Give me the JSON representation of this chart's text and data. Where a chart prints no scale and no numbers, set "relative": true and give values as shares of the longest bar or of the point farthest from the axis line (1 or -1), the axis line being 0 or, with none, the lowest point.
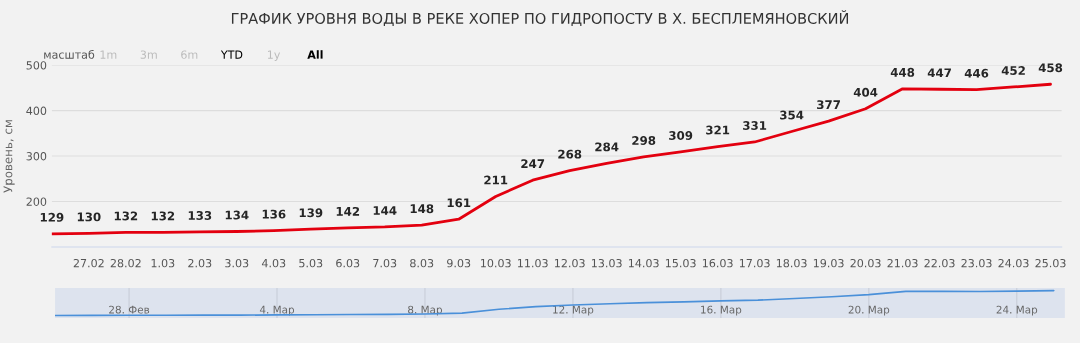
{
  "chart_data": [
    {
      "type": "line",
      "title": "ГРАФИК УРОВНЯ ВОДЫ В РЕКЕ ХОПЕР ПО ГИДРОПОСТУ В Х. БЕСПЛЕМЯНОВСКИЙ",
      "ylabel": "Уровень, см",
      "annotations": [
        "масштаб",
        "1m",
        "3m",
        "6m",
        "YTD",
        "1y",
        "All"
      ],
      "categories": [
        null,
        "27.02",
        "28.02",
        "1.03",
        "2.03",
        "3.03",
        "4.03",
        "5.03",
        "6.03",
        "7.03",
        "8.03",
        "9.03",
        "10.03",
        "11.03",
        "12.03",
        "13.03",
        "14.03",
        "15.03",
        "16.03",
        "17.03",
        "18.03",
        "19.03",
        "20.03",
        "21.03",
        "22.03",
        "23.03",
        "24.03",
        "25.03"
      ],
      "series": [
        {
          "color": "#e3000f",
          "values": [
            129,
            130,
            132,
            132,
            133,
            134,
            136,
            139,
            142,
            144,
            148,
            161,
            211,
            247,
            268,
            284,
            298,
            309,
            321,
            331,
            354,
            377,
            404,
            448,
            447,
            446,
            452,
            458
          ]
        }
      ],
      "ylim": [
        100,
        500
      ],
      "yticks": [
        200,
        300,
        400,
        500
      ],
      "grid": "y",
      "data_labels": true,
      "marker": "none",
      "line_style": "solid",
      "legend": false
    },
    {
      "type": "line",
      "relative": true,
      "tick_labels": "x",
      "grid": "x",
      "marker": "none",
      "categories": [
        null,
        null,
        "28. Фев",
        null,
        null,
        null,
        "4. Мар",
        null,
        null,
        null,
        "8. Мар",
        null,
        null,
        null,
        "12. Мар",
        null,
        null,
        null,
        "16. Мар",
        null,
        null,
        null,
        "20. Мар",
        null,
        null,
        null,
        "24. Мар",
        null
      ],
      "series": [
        {
          "color": "#4a90d9",
          "values": [
            0,
            0.003,
            0.009,
            0.009,
            0.012,
            0.015,
            0.021,
            0.03,
            0.04,
            0.046,
            0.058,
            0.097,
            0.249,
            0.359,
            0.422,
            0.471,
            0.514,
            0.547,
            0.584,
            0.614,
            0.684,
            0.754,
            0.836,
            0.97,
            0.967,
            0.964,
            0.982,
            1
          ]
        }
      ]
    }
  ]
}
